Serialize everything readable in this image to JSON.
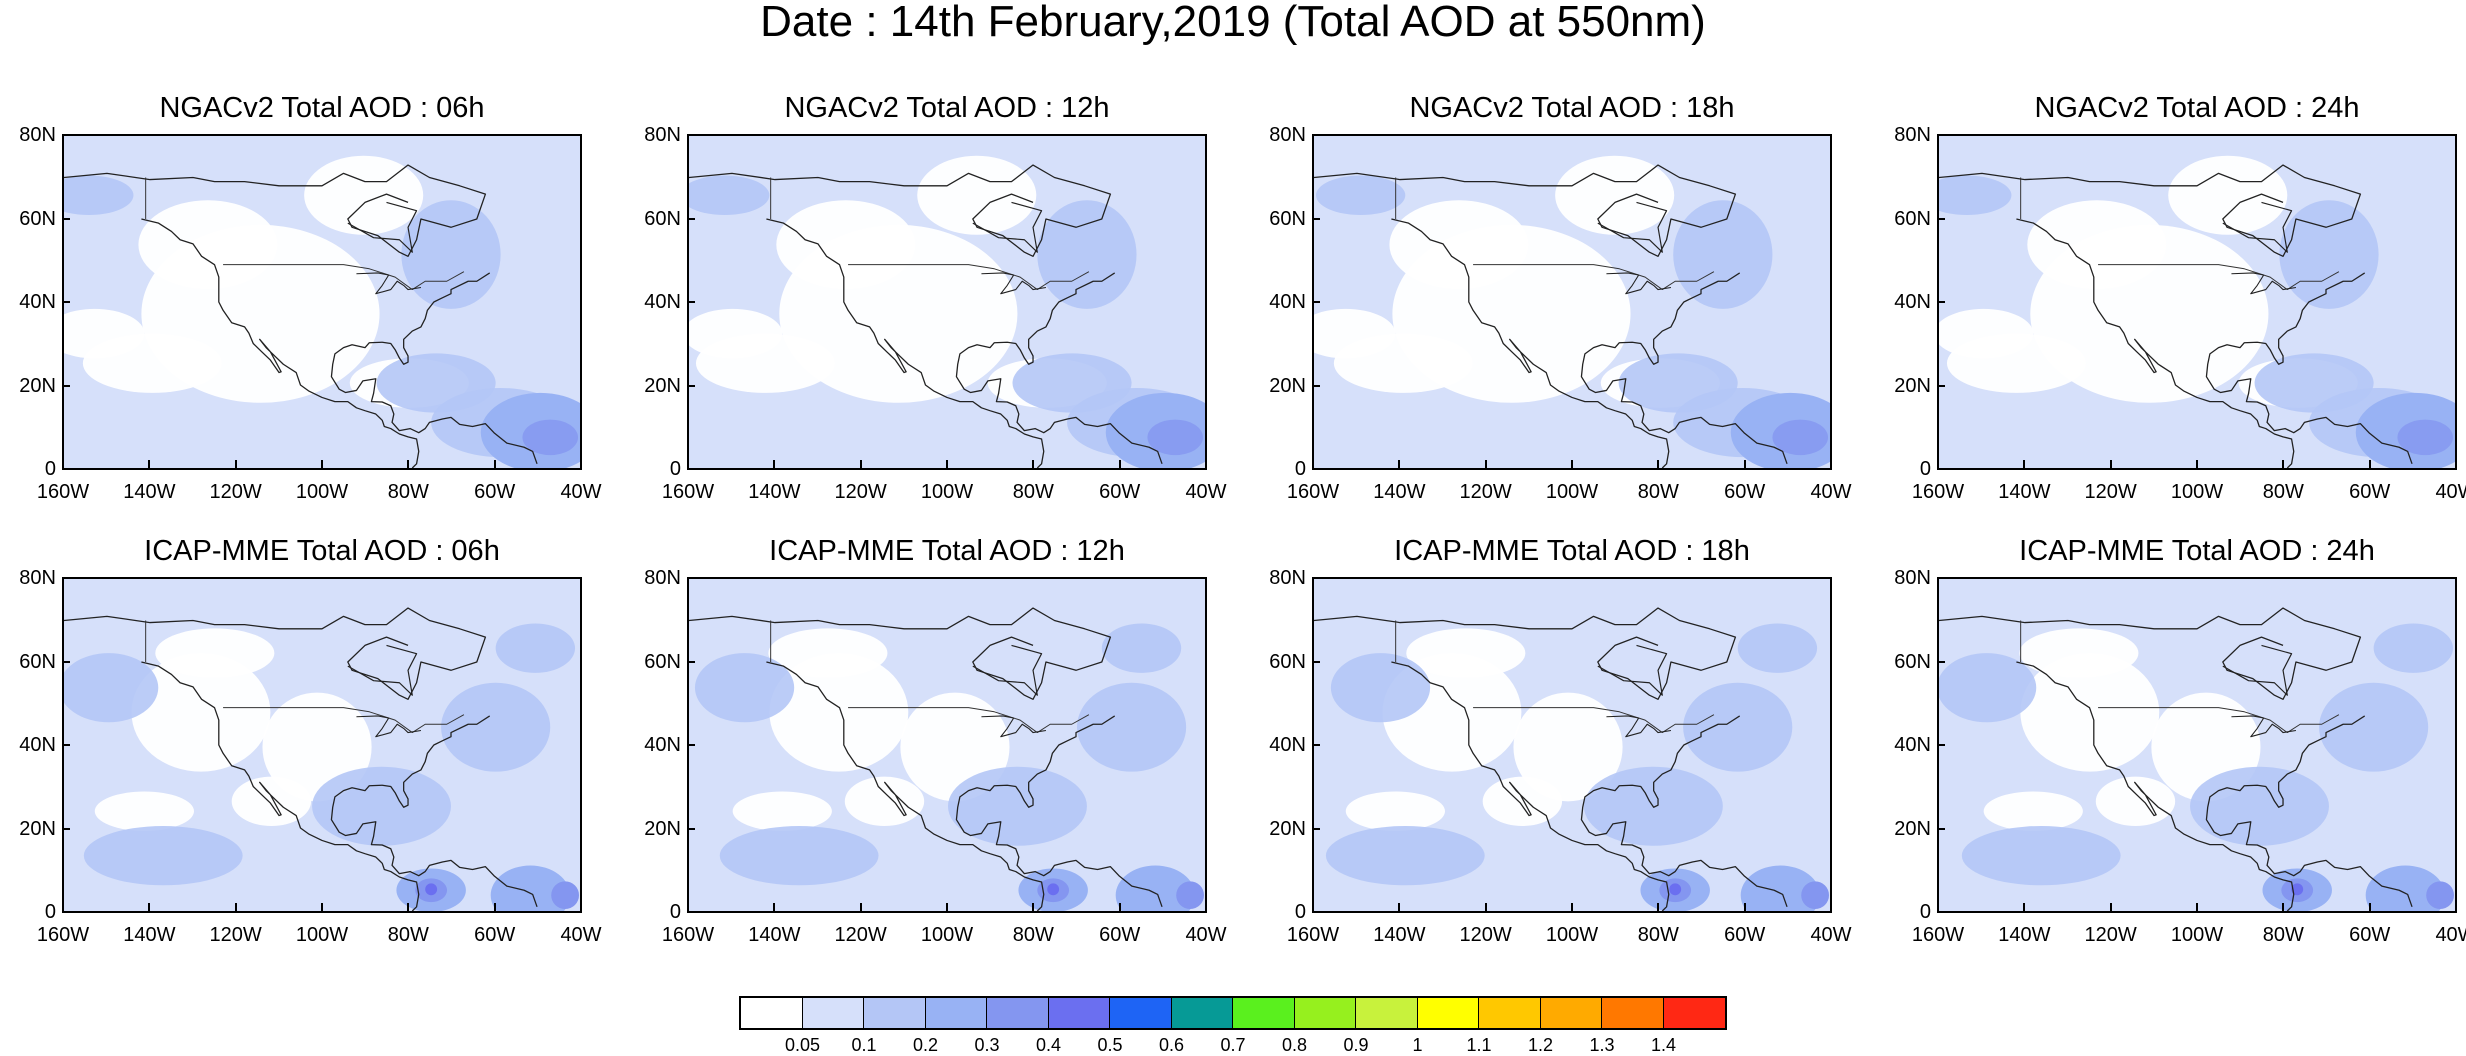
{
  "title": "Date : 14th February,2019 (Total AOD at 550nm)",
  "panels": [
    {
      "title": "NGACv2 Total AOD : 06h",
      "row": 0,
      "col": 0
    },
    {
      "title": "NGACv2 Total AOD : 12h",
      "row": 0,
      "col": 1
    },
    {
      "title": "NGACv2 Total AOD : 18h",
      "row": 0,
      "col": 2
    },
    {
      "title": "NGACv2 Total AOD : 24h",
      "row": 0,
      "col": 3
    },
    {
      "title": "ICAP-MME Total AOD : 06h",
      "row": 1,
      "col": 0
    },
    {
      "title": "ICAP-MME Total AOD : 12h",
      "row": 1,
      "col": 1
    },
    {
      "title": "ICAP-MME Total AOD : 18h",
      "row": 1,
      "col": 2
    },
    {
      "title": "ICAP-MME Total AOD : 24h",
      "row": 1,
      "col": 3
    }
  ],
  "y_ticks": [
    "80N",
    "60N",
    "40N",
    "20N",
    "0"
  ],
  "x_ticks": [
    "160W",
    "140W",
    "120W",
    "100W",
    "80W",
    "60W",
    "40W"
  ],
  "colorbar": {
    "labels": [
      "0.05",
      "0.1",
      "0.2",
      "0.3",
      "0.4",
      "0.5",
      "0.6",
      "0.7",
      "0.8",
      "0.9",
      "1",
      "1.1",
      "1.2",
      "1.3",
      "1.4"
    ],
    "colors": [
      "#ffffff",
      "#d6e0fa",
      "#b4c6f6",
      "#98b2f4",
      "#8496f0",
      "#6b6ff0",
      "#1e64f5",
      "#069a96",
      "#5af01e",
      "#96f01e",
      "#c8f23c",
      "#ffff00",
      "#ffc800",
      "#ffaa00",
      "#ff7800",
      "#ff2814"
    ]
  },
  "shading": {
    "base": "#d6e0fa",
    "light": "#ffffff",
    "mid": "#b4c6f6",
    "high": "#98b2f4",
    "peak": "#8496f0",
    "extreme": "#6b6ff0"
  }
}
